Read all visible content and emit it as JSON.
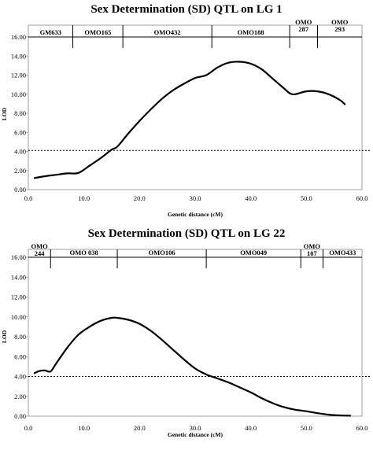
{
  "chart_data": [
    {
      "type": "line",
      "title": "Sex Determination (SD) QTL on LG 1",
      "xlabel": "Genetic distance (cM)",
      "ylabel": "LOD",
      "xlim": [
        0,
        60
      ],
      "ylim": [
        0,
        16
      ],
      "xticks": [
        "0.0",
        "10.0",
        "20.0",
        "30.0",
        "40.0",
        "50.0",
        "60.0"
      ],
      "yticks": [
        "0.00",
        "2.00",
        "4.00",
        "6.00",
        "8.00",
        "10.00",
        "12.00",
        "14.00",
        "16.00"
      ],
      "threshold": 4.1,
      "markers": [
        {
          "label": "GM633",
          "start": 0,
          "end": 8
        },
        {
          "label": "OMO165",
          "start": 8,
          "end": 17
        },
        {
          "label": "OMO432",
          "start": 17,
          "end": 33
        },
        {
          "label": "OMO188",
          "start": 33,
          "end": 47
        },
        {
          "label": "OMO\n287",
          "start": 47,
          "end": 52
        },
        {
          "label": "OMO\n293",
          "start": 52,
          "end": 60
        }
      ],
      "series": [
        {
          "x": [
            1,
            3,
            5,
            7,
            9,
            11,
            13,
            15,
            16,
            18,
            20,
            22,
            24,
            26,
            28,
            30,
            32,
            34,
            36,
            38,
            40,
            42,
            44,
            46,
            47,
            48,
            50,
            52,
            54,
            56,
            57
          ],
          "y": [
            1.2,
            1.4,
            1.55,
            1.7,
            1.75,
            2.5,
            3.3,
            4.2,
            4.5,
            5.9,
            7.2,
            8.4,
            9.5,
            10.4,
            11.1,
            11.7,
            12.0,
            12.8,
            13.3,
            13.4,
            13.2,
            12.6,
            11.6,
            10.6,
            10.1,
            10.0,
            10.3,
            10.3,
            10.0,
            9.4,
            8.9
          ]
        }
      ]
    },
    {
      "type": "line",
      "title": "Sex Determination (SD) QTL on LG 22",
      "xlabel": "Genetic distance (cM)",
      "ylabel": "LOD",
      "xlim": [
        0,
        60
      ],
      "ylim": [
        0,
        16
      ],
      "xticks": [
        "0.0",
        "10.0",
        "20.0",
        "30.0",
        "40.0",
        "50.0",
        "60.0"
      ],
      "yticks": [
        "0.00",
        "2.00",
        "4.00",
        "6.00",
        "8.00",
        "10.00",
        "12.00",
        "14.00",
        "16.00"
      ],
      "threshold": 4.0,
      "markers": [
        {
          "label": "OMO\n244",
          "start": 0,
          "end": 4
        },
        {
          "label": "OMO 038",
          "start": 4,
          "end": 16
        },
        {
          "label": "OMO106",
          "start": 16,
          "end": 32
        },
        {
          "label": "OMO049",
          "start": 32,
          "end": 49
        },
        {
          "label": "OMO\n107",
          "start": 49,
          "end": 53
        },
        {
          "label": "OMO433",
          "start": 53,
          "end": 60
        }
      ],
      "series": [
        {
          "x": [
            1,
            2,
            3,
            4,
            5,
            7,
            9,
            11,
            13,
            15,
            16,
            18,
            20,
            22,
            24,
            26,
            28,
            30,
            32,
            34,
            36,
            38,
            40,
            42,
            44,
            46,
            48,
            50,
            52,
            54,
            56,
            58
          ],
          "y": [
            4.3,
            4.55,
            4.6,
            4.5,
            5.3,
            6.9,
            8.2,
            9.0,
            9.6,
            9.9,
            9.9,
            9.7,
            9.3,
            8.6,
            7.7,
            6.7,
            5.7,
            4.8,
            4.2,
            3.8,
            3.4,
            2.9,
            2.4,
            1.8,
            1.3,
            0.9,
            0.65,
            0.5,
            0.3,
            0.15,
            0.08,
            0.05
          ]
        }
      ]
    }
  ]
}
